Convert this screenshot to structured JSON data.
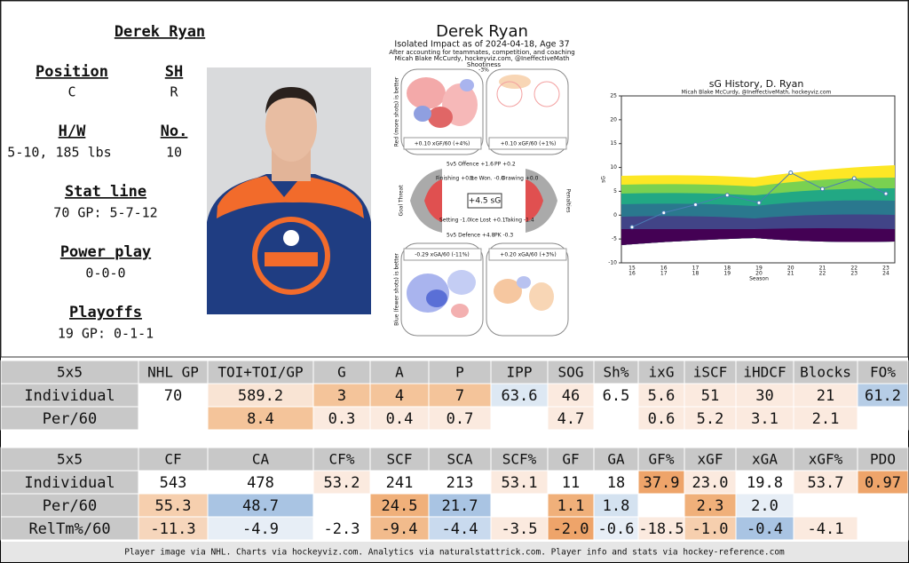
{
  "profile": {
    "name": "Derek Ryan",
    "position_label": "Position",
    "position": "C",
    "shoots_label": "SH",
    "shoots": "R",
    "hw_label": "H/W",
    "hw": "5-10, 185 lbs",
    "number_label": "No.",
    "number": "10",
    "stat_line_label": "Stat line",
    "stat_line": "70 GP: 5-7-12",
    "power_play_label": "Power play",
    "power_play": "0-0-0",
    "playoffs_label": "Playoffs",
    "playoffs": "19 GP: 0-1-1"
  },
  "isolated_impact": {
    "title": "Derek Ryan",
    "subtitle": "Isolated Impact as of 2024-04-18, Age 37",
    "note": "After accounting for teammates, competition, and coaching",
    "credit": "Micah Blake McCurdy, hockeyviz.com, @IneffectiveMath",
    "shootiness_label": "Shootiness",
    "shootiness": "-3%",
    "offence_label": "Red (more shots) is better",
    "defence_label": "Blue (fewer shots) is better",
    "xgf_5v5": "+0.10 xGF/60 (+4%)",
    "xgf_pp": "+0.10 xGF/60 (+1%)",
    "offence_5v5": "5v5 Offence +1.6",
    "pp": "PP +0.2",
    "finishing": "Finishing +0.5",
    "ice_won": "Ice Won. -0.0",
    "drawing": "Drawing +0.0",
    "total": "+4.5 sG",
    "setting": "Setting -1.0",
    "ice_lost": "Ice Lost +0.1",
    "taking": "Taking -1.4",
    "defence_5v5": "5v5 Defence +4.8",
    "pk": "PK -0.3",
    "goal_threat": "Goal Threat",
    "penalties": "Penalties",
    "xga_5v5": "-0.29 xGA/60 (-11%)",
    "xga_pk": "+0.20 xGA/60 (+3%)"
  },
  "sg_history": {
    "type": "line",
    "title": "sG History, D. Ryan",
    "subtitle": "Micah Blake McCurdy, @IneffectiveMath, hockeyviz.com",
    "y_label": "sG",
    "x_label": "Season",
    "categories_top": [
      "15",
      "16",
      "17",
      "18",
      "19",
      "20",
      "21",
      "22",
      "23"
    ],
    "categories_bottom": [
      "16",
      "17",
      "18",
      "19",
      "20",
      "21",
      "22",
      "23",
      "24"
    ],
    "values": [
      -2.5,
      0.5,
      2.2,
      4.2,
      2.6,
      8.9,
      5.5,
      7.7,
      4.5
    ],
    "color": "#4a7db5",
    "ylim": [
      -10,
      25
    ],
    "yticks": [
      -10,
      -5,
      0,
      5,
      10,
      15,
      20,
      25
    ]
  },
  "tables": [
    {
      "header": [
        "5x5",
        "NHL GP",
        "TOI+TOI/GP",
        "G",
        "A",
        "P",
        "IPP",
        "SOG",
        "Sh%",
        "ixG",
        "iSCF",
        "iHDCF",
        "Blocks",
        "FO%"
      ],
      "header_color": "#c8c8c8",
      "rows": [
        {
          "cells": [
            "Individual",
            "70",
            "589.2",
            "3",
            "4",
            "7",
            "63.6",
            "46",
            "6.5",
            "5.6",
            "51",
            "30",
            "21",
            "61.2"
          ],
          "colors": [
            "#c8c8c8",
            "#ffffff",
            "#f9e4d4",
            "#f4c49a",
            "#f4c49a",
            "#f4c49a",
            "#dde8f3",
            "#fbeadf",
            "#ffffff",
            "#fbeadf",
            "#fbeadf",
            "#fbeadf",
            "#fbeadf",
            "#b6cde6"
          ]
        },
        {
          "cells": [
            "Per/60",
            null,
            "8.4",
            "0.3",
            "0.4",
            "0.7",
            null,
            "4.7",
            null,
            "0.6",
            "5.2",
            "3.1",
            "2.1",
            null
          ],
          "colors": [
            "#c8c8c8",
            "#ffffff",
            "#f4c49a",
            "#fbeadf",
            "#fbeadf",
            "#fbeadf",
            "#ffffff",
            "#fbeadf",
            "#ffffff",
            "#fbeadf",
            "#fbeadf",
            "#fbeadf",
            "#fbeadf",
            "#ffffff"
          ]
        }
      ]
    },
    {
      "header": [
        "5x5",
        "CF",
        "CA",
        "CF%",
        "SCF",
        "SCA",
        "SCF%",
        "GF",
        "GA",
        "GF%",
        "xGF",
        "xGA",
        "xGF%",
        "PDO"
      ],
      "header_color": "#c8c8c8",
      "rows": [
        {
          "cells": [
            "Individual",
            "543",
            "478",
            "53.2",
            "241",
            "213",
            "53.1",
            "11",
            "18",
            "37.9",
            "23.0",
            "19.8",
            "53.7",
            "0.97"
          ],
          "colors": [
            "#c8c8c8",
            "#ffffff",
            "#ffffff",
            "#fbeadf",
            "#ffffff",
            "#ffffff",
            "#fbeadf",
            "#ffffff",
            "#ffffff",
            "#eea46a",
            "#fbeadf",
            "#ffffff",
            "#fbeadf",
            "#eea46a"
          ]
        },
        {
          "cells": [
            "Per/60",
            "55.3",
            "48.7",
            null,
            "24.5",
            "21.7",
            null,
            "1.1",
            "1.8",
            null,
            "2.3",
            "2.0",
            null,
            null
          ],
          "colors": [
            "#c8c8c8",
            "#f6cfae",
            "#a9c4e3",
            "#ffffff",
            "#f0b07a",
            "#a9c4e3",
            "#ffffff",
            "#f0b07a",
            "#d4e2f0",
            "#ffffff",
            "#f0b07a",
            "#e7eef6",
            "#ffffff",
            "#ffffff"
          ]
        },
        {
          "cells": [
            "RelTm%/60",
            "-11.3",
            "-4.9",
            "-2.3",
            "-9.4",
            "-4.4",
            "-3.5",
            "-2.0",
            "-0.6",
            "-18.5",
            "-1.0",
            "-0.4",
            "-4.1",
            null
          ],
          "colors": [
            "#c8c8c8",
            "#f6d6bc",
            "#e7eef6",
            "#ffffff",
            "#f2bb8c",
            "#c9daee",
            "#fbeadf",
            "#eea46a",
            "#e7eef6",
            "#fbeadf",
            "#f6cfae",
            "#a9c4e3",
            "#fbeadf",
            "#ffffff"
          ]
        }
      ]
    }
  ],
  "footer": "Player image via NHL. Charts via hockeyviz.com. Analytics via naturalstattrick.com. Player info and stats via hockey-reference.com"
}
